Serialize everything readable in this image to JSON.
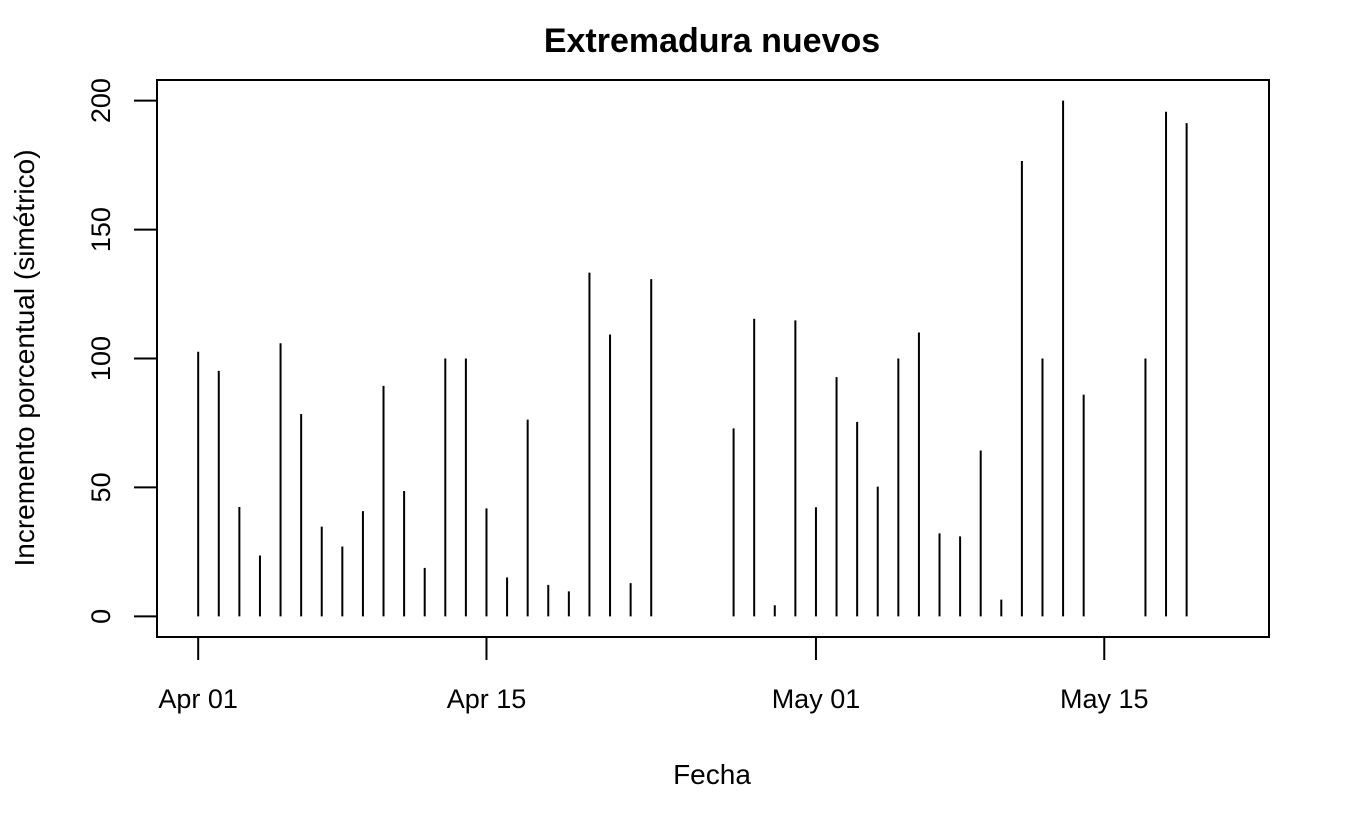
{
  "chart_data": {
    "type": "bar",
    "style": "vertical-lines",
    "title": "Extremadura nuevos",
    "xlabel": "Fecha",
    "ylabel": "Incremento porcentual (simétrico)",
    "x_tick_labels": [
      {
        "date": "2020-04-01",
        "label": "Apr 01"
      },
      {
        "date": "2020-04-15",
        "label": "Apr 15"
      },
      {
        "date": "2020-05-01",
        "label": "May 01"
      },
      {
        "date": "2020-05-15",
        "label": "May 15"
      }
    ],
    "y_ticks": [
      0,
      50,
      100,
      150,
      200
    ],
    "xlim": [
      "2020-03-30",
      "2020-05-23"
    ],
    "ylim": [
      -8,
      208
    ],
    "grid": false,
    "legend": "none",
    "x": [
      "2020-04-01",
      "2020-04-02",
      "2020-04-03",
      "2020-04-04",
      "2020-04-05",
      "2020-04-06",
      "2020-04-07",
      "2020-04-08",
      "2020-04-09",
      "2020-04-10",
      "2020-04-11",
      "2020-04-12",
      "2020-04-13",
      "2020-04-14",
      "2020-04-15",
      "2020-04-16",
      "2020-04-17",
      "2020-04-18",
      "2020-04-19",
      "2020-04-20",
      "2020-04-21",
      "2020-04-22",
      "2020-04-23",
      "2020-04-27",
      "2020-04-28",
      "2020-04-29",
      "2020-04-30",
      "2020-05-01",
      "2020-05-02",
      "2020-05-03",
      "2020-05-04",
      "2020-05-05",
      "2020-05-06",
      "2020-05-07",
      "2020-05-08",
      "2020-05-09",
      "2020-05-10",
      "2020-05-11",
      "2020-05-12",
      "2020-05-13",
      "2020-05-14",
      "2020-05-15",
      "2020-05-16",
      "2020-05-17",
      "2020-05-18",
      "2020-05-19",
      "2020-05-20"
    ],
    "values": [
      102.6,
      95.2,
      42.4,
      23.6,
      105.9,
      78.5,
      34.8,
      27.1,
      40.8,
      89.4,
      48.6,
      18.8,
      100.0,
      100.0,
      41.9,
      15.1,
      76.3,
      12.2,
      9.7,
      133.3,
      109.3,
      12.9,
      130.8,
      72.9,
      115.4,
      4.3,
      114.8,
      42.3,
      92.8,
      75.4,
      50.3,
      100.0,
      110.1,
      32.2,
      31.0,
      64.3,
      6.5,
      176.6,
      100.0,
      200.0,
      86.0,
      null,
      0,
      100.0,
      195.7,
      191.3,
      0
    ]
  }
}
